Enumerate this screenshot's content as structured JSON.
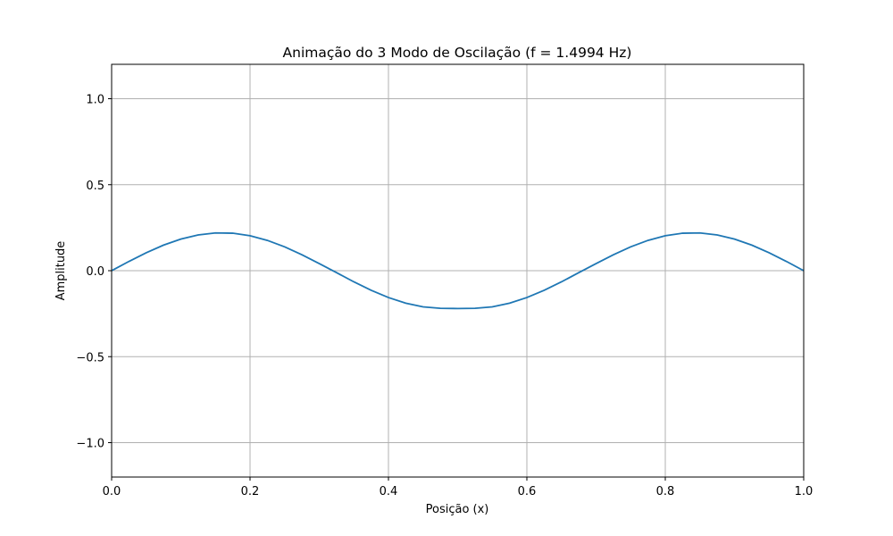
{
  "chart_data": {
    "type": "line",
    "title": "Animação do 3 Modo de Oscilação (f = 1.4994 Hz)",
    "xlabel": "Posição (x)",
    "ylabel": "Amplitude",
    "xlim": [
      0.0,
      1.0
    ],
    "ylim": [
      -1.2,
      1.2
    ],
    "grid": true,
    "x_ticks": [
      0.0,
      0.2,
      0.4,
      0.6,
      0.8,
      1.0
    ],
    "x_tick_labels": [
      "0.0",
      "0.2",
      "0.4",
      "0.6",
      "0.8",
      "1.0"
    ],
    "y_ticks": [
      -1.0,
      -0.5,
      0.0,
      0.5,
      1.0
    ],
    "y_tick_labels": [
      "−1.0",
      "−0.5",
      "0.0",
      "0.5",
      "1.0"
    ],
    "series": [
      {
        "color": "#1f77b4",
        "x": [
          0.0,
          0.025,
          0.05,
          0.075,
          0.1,
          0.125,
          0.15,
          0.175,
          0.2,
          0.225,
          0.25,
          0.275,
          0.3,
          0.325,
          0.35,
          0.375,
          0.4,
          0.425,
          0.45,
          0.475,
          0.5,
          0.525,
          0.55,
          0.575,
          0.6,
          0.625,
          0.65,
          0.675,
          0.7,
          0.725,
          0.75,
          0.775,
          0.8,
          0.825,
          0.85,
          0.875,
          0.9,
          0.925,
          0.95,
          0.975,
          1.0
        ],
        "y": [
          0.0,
          0.0538,
          0.1044,
          0.1487,
          0.1839,
          0.208,
          0.2196,
          0.218,
          0.2031,
          0.1762,
          0.1386,
          0.0926,
          0.041,
          -0.0115,
          -0.0649,
          -0.1139,
          -0.1561,
          -0.1889,
          -0.2102,
          -0.2189,
          -0.22,
          -0.2189,
          -0.2102,
          -0.1889,
          -0.1561,
          -0.1139,
          -0.0649,
          -0.0115,
          0.041,
          0.0926,
          0.1386,
          0.1762,
          0.2031,
          0.218,
          0.2196,
          0.208,
          0.1839,
          0.1487,
          0.1044,
          0.0538,
          0.0
        ]
      }
    ]
  }
}
